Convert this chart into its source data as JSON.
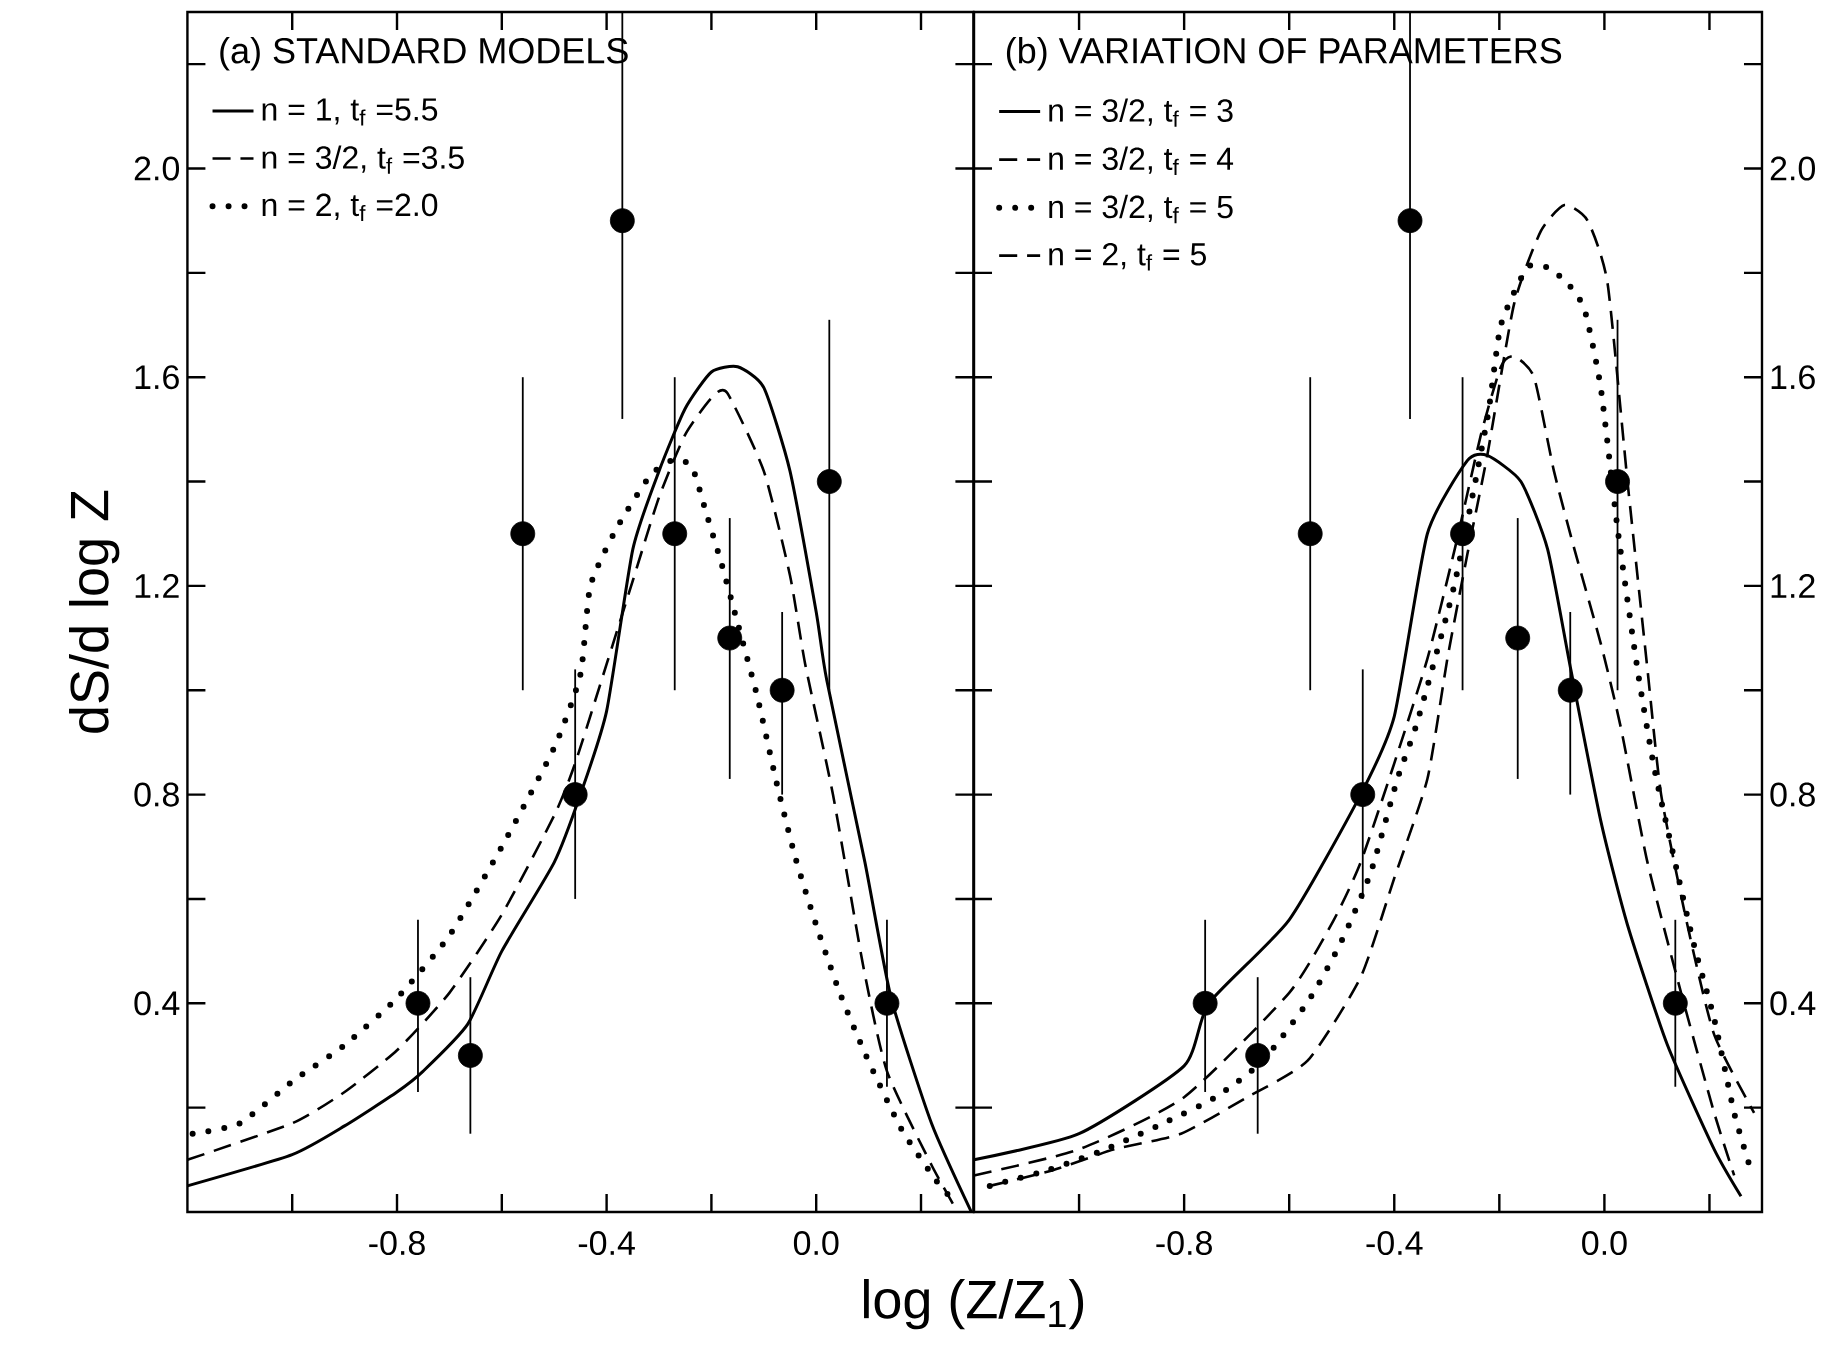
{
  "chart_data": [
    {
      "type": "line",
      "title": "(a) STANDARD MODELS",
      "xlabel": "log (Z/Z$_{1}$)",
      "ylabel": "dS/d log Z",
      "xlim": [
        -1.2,
        0.3
      ],
      "ylim": [
        0,
        2.3
      ],
      "xticks": [
        {
          "value": -1.0,
          "label": null
        },
        {
          "value": -0.8,
          "label": "-0.8"
        },
        {
          "value": -0.6,
          "label": null
        },
        {
          "value": -0.4,
          "label": "-0.4"
        },
        {
          "value": -0.2,
          "label": null
        },
        {
          "value": 0,
          "label": "0.0"
        },
        {
          "value": 0.2,
          "label": null
        }
      ],
      "yticks": [
        {
          "value": 0.2,
          "label": null
        },
        0.4,
        {
          "value": 0.6,
          "label": null
        },
        0.8,
        {
          "value": 1.0,
          "label": null
        },
        1.2,
        {
          "value": 1.4,
          "label": null
        },
        1.6,
        {
          "value": 1.8,
          "label": null
        },
        {
          "value": 2.0,
          "label": "2.0"
        },
        {
          "value": 2.2,
          "label": null
        }
      ],
      "legend": "top left",
      "series": [
        {
          "name": "n = 1,    t$_{f}$ =5.5",
          "line_style": "solid",
          "color": "#000000",
          "x": [
            -1.2,
            -1.0,
            -0.9,
            -0.8,
            -0.75,
            -0.665,
            -0.6,
            -0.5,
            -0.45,
            -0.4,
            -0.35,
            -0.3,
            -0.25,
            -0.2,
            -0.15,
            -0.1,
            -0.05,
            0.0,
            0.02,
            0.093,
            0.143,
            0.22,
            0.296
          ],
          "values": [
            0.05,
            0.11,
            0.165,
            0.23,
            0.27,
            0.36,
            0.5,
            0.67,
            0.8,
            0.96,
            1.27,
            1.42,
            1.54,
            1.61,
            1.62,
            1.58,
            1.42,
            1.15,
            1.02,
            0.67,
            0.41,
            0.17,
            0.0
          ]
        },
        {
          "name": "n = 3/2, t$_{f}$ =3.5",
          "line_style": "dashed",
          "color": "#000000",
          "x": [
            -1.2,
            -1.0,
            -0.9,
            -0.8,
            -0.7,
            -0.6,
            -0.5,
            -0.46,
            -0.4,
            -0.35,
            -0.3,
            -0.25,
            -0.2,
            -0.17,
            -0.1,
            -0.05,
            -0.021,
            0.032,
            0.09,
            0.135,
            0.22,
            0.27
          ],
          "values": [
            0.1,
            0.17,
            0.23,
            0.31,
            0.42,
            0.57,
            0.76,
            0.86,
            1.05,
            1.21,
            1.37,
            1.49,
            1.56,
            1.57,
            1.42,
            1.22,
            1.05,
            0.8,
            0.47,
            0.27,
            0.09,
            0.0
          ]
        },
        {
          "name": "n = 2,    t$_{f}$ =2.0",
          "line_style": "dotted",
          "color": "#000000",
          "x": [
            -1.19,
            -1.1,
            -1.0,
            -0.9,
            -0.8,
            -0.7,
            -0.6,
            -0.5,
            -0.45,
            -0.431,
            -0.381,
            -0.318,
            -0.276,
            -0.238,
            -0.21,
            -0.18,
            -0.153,
            -0.113,
            -0.075,
            -0.04,
            0.0,
            0.045,
            0.095,
            0.162,
            0.229,
            0.264
          ],
          "values": [
            0.15,
            0.17,
            0.25,
            0.32,
            0.41,
            0.53,
            0.7,
            0.89,
            1.03,
            1.2,
            1.31,
            1.41,
            1.44,
            1.43,
            1.34,
            1.24,
            1.14,
            0.99,
            0.82,
            0.68,
            0.55,
            0.42,
            0.3,
            0.16,
            0.06,
            0.02
          ]
        },
        {
          "type": "scatter",
          "marker": "circle",
          "color": "#000000",
          "x": [
            -0.76,
            -0.66,
            -0.56,
            -0.46,
            -0.37,
            -0.27,
            -0.165,
            -0.065,
            0.025,
            0.135
          ],
          "values": [
            0.4,
            0.3,
            1.3,
            0.8,
            1.9,
            1.3,
            1.1,
            1.0,
            1.4,
            0.4
          ],
          "errors": [
            [
              0.23,
              0.56
            ],
            [
              0.15,
              0.45
            ],
            [
              1.0,
              1.6
            ],
            [
              0.6,
              1.04
            ],
            [
              1.52,
              2.3
            ],
            [
              1.0,
              1.6
            ],
            [
              0.83,
              1.33
            ],
            [
              0.8,
              1.15
            ],
            [
              1.0,
              1.71
            ],
            [
              0.24,
              0.56
            ]
          ]
        }
      ]
    },
    {
      "type": "line",
      "title": "(b) VARIATION OF PARAMETERS",
      "xlim": [
        -1.2,
        0.3
      ],
      "ylim": [
        0,
        2.3
      ],
      "xticks": [
        {
          "value": -1.0,
          "label": null
        },
        {
          "value": -0.8,
          "label": "-0.8"
        },
        {
          "value": -0.6,
          "label": null
        },
        {
          "value": -0.4,
          "label": "-0.4"
        },
        {
          "value": -0.2,
          "label": null
        },
        {
          "value": 0,
          "label": "0.0"
        },
        {
          "value": 0.2,
          "label": null
        }
      ],
      "yticks": [
        {
          "value": 0.2,
          "label": null
        },
        0.4,
        {
          "value": 0.6,
          "label": null
        },
        0.8,
        {
          "value": 1.0,
          "label": null
        },
        1.2,
        {
          "value": 1.4,
          "label": null
        },
        1.6,
        {
          "value": 1.8,
          "label": null
        },
        {
          "value": 2.0,
          "label": "2.0"
        },
        {
          "value": 2.2,
          "label": null
        }
      ],
      "legend": "top left",
      "series": [
        {
          "name": "n = 3/2, t$_{f}$ = 3",
          "line_style": "solid",
          "color": "#000000",
          "x": [
            -1.2,
            -1.0,
            -0.8,
            -0.753,
            -0.6,
            -0.464,
            -0.4,
            -0.337,
            -0.261,
            -0.223,
            -0.159,
            -0.108,
            -0.064,
            -0.007,
            0.044,
            0.12,
            0.209,
            0.26
          ],
          "values": [
            0.1,
            0.15,
            0.28,
            0.4,
            0.56,
            0.8,
            0.95,
            1.3,
            1.44,
            1.45,
            1.4,
            1.27,
            1.04,
            0.75,
            0.55,
            0.32,
            0.12,
            0.03
          ]
        },
        {
          "name": "n = 3/2, t$_{f}$ = 4",
          "line_style": "dashed",
          "color": "#000000",
          "x": [
            -1.2,
            -1.0,
            -0.8,
            -0.6,
            -0.515,
            -0.464,
            -0.4,
            -0.337,
            -0.285,
            -0.235,
            -0.197,
            -0.172,
            -0.134,
            -0.096,
            -0.057,
            -0.007,
            0.031,
            0.082,
            0.146,
            0.209,
            0.247
          ],
          "values": [
            0.07,
            0.12,
            0.22,
            0.42,
            0.56,
            0.67,
            0.86,
            1.06,
            1.27,
            1.49,
            1.62,
            1.64,
            1.6,
            1.42,
            1.27,
            1.09,
            0.93,
            0.67,
            0.42,
            0.19,
            0.07
          ]
        },
        {
          "name": "n = 3/2, t$_{f}$ = 5",
          "line_style": "dotted",
          "color": "#000000",
          "x": [
            -1.17,
            -1.06,
            -0.95,
            -0.84,
            -0.74,
            -0.65,
            -0.56,
            -0.5,
            -0.445,
            -0.394,
            -0.356,
            -0.286,
            -0.223,
            -0.197,
            -0.147,
            -0.108,
            -0.07,
            -0.038,
            -0.007,
            0.025,
            0.063,
            0.095,
            0.139,
            0.171,
            0.209,
            0.247,
            0.279
          ],
          "values": [
            0.05,
            0.08,
            0.12,
            0.17,
            0.22,
            0.29,
            0.41,
            0.52,
            0.65,
            0.83,
            0.94,
            1.2,
            1.52,
            1.7,
            1.81,
            1.81,
            1.78,
            1.73,
            1.58,
            1.31,
            1.04,
            0.85,
            0.65,
            0.51,
            0.37,
            0.19,
            0.08
          ]
        },
        {
          "name": "n = 2,     t$_{f}$ = 5",
          "line_style": "dashed",
          "color": "#000000",
          "x": [
            -1.17,
            -1.05,
            -0.933,
            -0.806,
            -0.68,
            -0.565,
            -0.464,
            -0.4,
            -0.337,
            -0.299,
            -0.261,
            -0.223,
            -0.172,
            -0.121,
            -0.076,
            -0.032,
            0.006,
            0.044,
            0.082,
            0.108,
            0.158,
            0.209,
            0.285
          ],
          "values": [
            0.05,
            0.08,
            0.12,
            0.15,
            0.22,
            0.29,
            0.45,
            0.64,
            0.83,
            1.06,
            1.26,
            1.45,
            1.74,
            1.88,
            1.93,
            1.9,
            1.78,
            1.4,
            1.04,
            0.8,
            0.55,
            0.34,
            0.19
          ]
        },
        {
          "type": "scatter",
          "marker": "circle",
          "color": "#000000",
          "x": [
            -0.76,
            -0.66,
            -0.56,
            -0.46,
            -0.37,
            -0.27,
            -0.165,
            -0.065,
            0.025,
            0.135
          ],
          "values": [
            0.4,
            0.3,
            1.3,
            0.8,
            1.9,
            1.3,
            1.1,
            1.0,
            1.4,
            0.4
          ],
          "errors": [
            [
              0.23,
              0.56
            ],
            [
              0.15,
              0.45
            ],
            [
              1.0,
              1.6
            ],
            [
              0.6,
              1.04
            ],
            [
              1.52,
              2.3
            ],
            [
              1.0,
              1.6
            ],
            [
              0.83,
              1.33
            ],
            [
              0.8,
              1.15
            ],
            [
              1.0,
              1.71
            ],
            [
              0.24,
              0.56
            ]
          ]
        }
      ]
    }
  ]
}
